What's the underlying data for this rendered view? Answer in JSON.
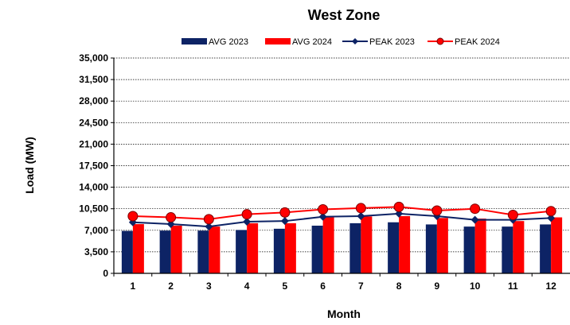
{
  "chart_data": {
    "type": "bar",
    "title": "West  Zone",
    "xlabel": "Month",
    "ylabel": "Load (MW)",
    "categories": [
      "1",
      "2",
      "3",
      "4",
      "5",
      "6",
      "7",
      "8",
      "9",
      "10",
      "11",
      "12"
    ],
    "ylim": [
      0,
      35000
    ],
    "yticks": [
      "0",
      "3,500",
      "7,000",
      "10,500",
      "14,000",
      "17,500",
      "21,000",
      "24,500",
      "28,000",
      "31,500",
      "35,000"
    ],
    "yticks_values": [
      0,
      3500,
      7000,
      10500,
      14000,
      17500,
      21000,
      24500,
      28000,
      31500,
      35000
    ],
    "grid": "horizontal dashed",
    "legend_position": "top",
    "series": [
      {
        "name": "AVG 2023",
        "kind": "bar",
        "color": "#0d2365",
        "values": [
          6900,
          6950,
          6950,
          7050,
          7250,
          7750,
          8150,
          8300,
          7950,
          7600,
          7600,
          7950
        ]
      },
      {
        "name": "AVG 2024",
        "kind": "bar",
        "color": "#ff0000",
        "values": [
          8000,
          7750,
          7600,
          8150,
          8150,
          9100,
          9250,
          9300,
          9000,
          8900,
          8500,
          9100
        ]
      },
      {
        "name": "PEAK 2023",
        "kind": "line",
        "color": "#0d2365",
        "values": [
          8300,
          8000,
          7600,
          8400,
          8500,
          9200,
          9300,
          9700,
          9300,
          8700,
          8700,
          9000
        ]
      },
      {
        "name": "PEAK 2024",
        "kind": "line",
        "color": "#ff0000",
        "values": [
          9300,
          9100,
          8800,
          9600,
          9900,
          10400,
          10600,
          10800,
          10200,
          10500,
          9500,
          10100
        ]
      }
    ]
  }
}
